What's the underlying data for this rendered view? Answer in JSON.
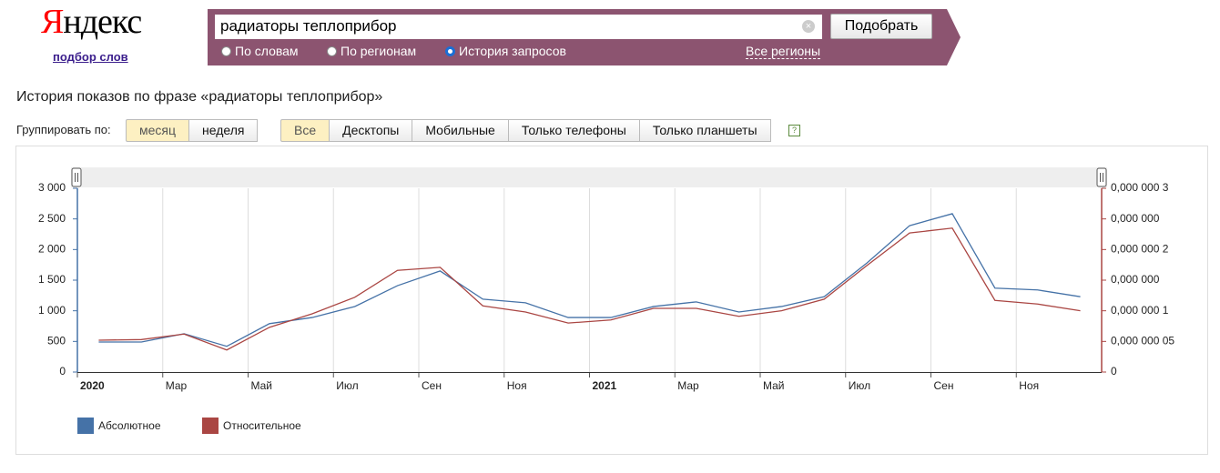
{
  "header": {
    "logo": "Яндекс",
    "logo_link": "подбор слов",
    "search_query": "радиаторы теплоприбор",
    "search_button": "Подобрать",
    "modes": [
      "По словам",
      "По регионам",
      "История запросов"
    ],
    "selected_mode": 2,
    "regions_link": "Все регионы"
  },
  "page_title": "История показов по фразе «радиаторы теплоприбор»",
  "controls": {
    "group_label": "Группировать по:",
    "group_options": [
      "месяц",
      "неделя"
    ],
    "selected_group": 0,
    "device_options": [
      "Все",
      "Десктопы",
      "Мобильные",
      "Только телефоны",
      "Только планшеты"
    ],
    "selected_device": 0,
    "help": "?"
  },
  "chart_data": {
    "type": "line",
    "x": [
      "2020",
      null,
      "Мар",
      null,
      "Май",
      null,
      "Июл",
      null,
      "Сен",
      null,
      "Ноя",
      null,
      "2021",
      null,
      "Мар",
      null,
      "Май",
      null,
      "Июл",
      null,
      "Сен",
      null,
      "Ноя",
      null
    ],
    "series": [
      {
        "name": "Абсолютное",
        "color": "#4572a7",
        "values": [
          490,
          490,
          625,
          420,
          790,
          890,
          1070,
          1410,
          1650,
          1190,
          1130,
          890,
          890,
          1070,
          1145,
          980,
          1070,
          1230,
          1780,
          2390,
          2585,
          1370,
          1340,
          1230
        ]
      },
      {
        "name": "Относительное",
        "color": "#aa4643",
        "axis": "y2",
        "values": [
          5.2e-08,
          5.3e-08,
          6.2e-08,
          3.6e-08,
          7.3e-08,
          9.5e-08,
          1.22e-07,
          1.66e-07,
          1.71e-07,
          1.08e-07,
          9.8e-08,
          8e-08,
          8.5e-08,
          1.04e-07,
          1.04e-07,
          9.1e-08,
          1e-07,
          1.19e-07,
          1.74e-07,
          2.27e-07,
          2.35e-07,
          1.17e-07,
          1.11e-07,
          1e-07
        ]
      }
    ],
    "ylim": [
      0,
      3000
    ],
    "yticks": [
      0,
      500,
      {
        "value": 1000,
        "label": "1 000"
      },
      {
        "value": 1500,
        "label": "1 500"
      },
      {
        "value": 2000,
        "label": "2 000"
      },
      {
        "value": 2500,
        "label": "2 500"
      },
      {
        "value": 3000,
        "label": "3 000"
      }
    ],
    "y2lim": [
      0,
      3e-07
    ],
    "y2ticks": [
      0,
      {
        "value": 5e-08,
        "label": "0,000 000 05"
      },
      {
        "value": 1e-07,
        "label": "0,000 000 1"
      },
      {
        "value": 1.5e-07,
        "label": "0,000 000"
      },
      {
        "value": 2e-07,
        "label": "0,000 000 2"
      },
      {
        "value": 2.5e-07,
        "label": "0,000 000"
      },
      {
        "value": 3e-07,
        "label": "0,000 000 3"
      }
    ],
    "grid": true,
    "legend": "bottom-left"
  }
}
